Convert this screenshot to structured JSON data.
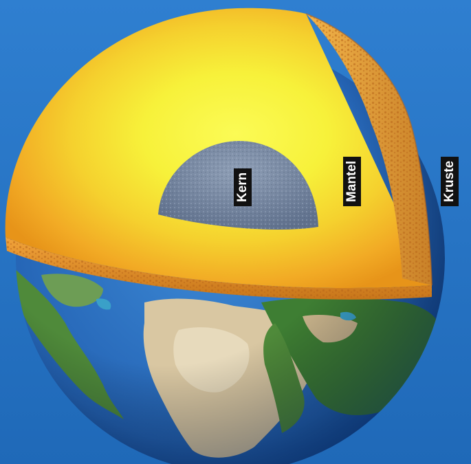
{
  "diagram": {
    "labels": {
      "core": "Kern",
      "mantle": "Mantel",
      "crust": "Kruste"
    }
  },
  "colors": {
    "background": "#1f6fbd",
    "ocean": "#2a6fc4",
    "land_green": "#4f8a3a",
    "land_desert": "#e2d2b2",
    "mantle_outer": "#f3a623",
    "mantle_inner": "#f7f43a",
    "core": "#7d8fa8",
    "label_bg": "#111111",
    "label_text": "#ffffff"
  }
}
